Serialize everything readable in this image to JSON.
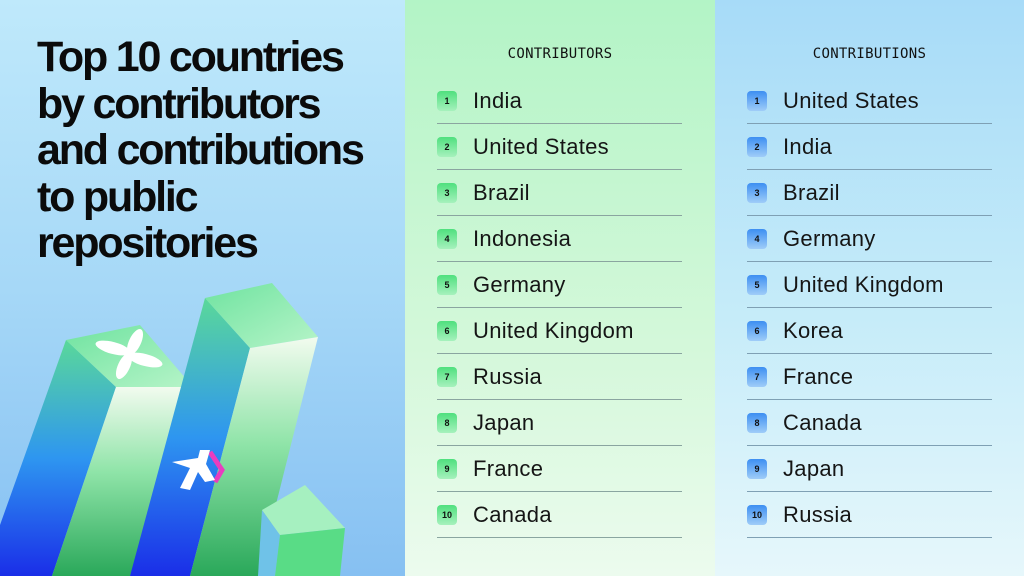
{
  "title_lines": [
    "Top 10 countries",
    "by contributors",
    "and contributions",
    "to public",
    "repositories"
  ],
  "columns": [
    {
      "header": "CONTRIBUTORS",
      "badge_color": "#4fe07e",
      "rows": [
        {
          "rank": "1",
          "country": "India"
        },
        {
          "rank": "2",
          "country": "United States"
        },
        {
          "rank": "3",
          "country": "Brazil"
        },
        {
          "rank": "4",
          "country": "Indonesia"
        },
        {
          "rank": "5",
          "country": "Germany"
        },
        {
          "rank": "6",
          "country": "United Kingdom"
        },
        {
          "rank": "7",
          "country": "Russia"
        },
        {
          "rank": "8",
          "country": "Japan"
        },
        {
          "rank": "9",
          "country": "France"
        },
        {
          "rank": "10",
          "country": "Canada"
        }
      ]
    },
    {
      "header": "CONTRIBUTIONS",
      "badge_color": "#3d8ff2",
      "rows": [
        {
          "rank": "1",
          "country": "United States"
        },
        {
          "rank": "2",
          "country": "India"
        },
        {
          "rank": "3",
          "country": "Brazil"
        },
        {
          "rank": "4",
          "country": "Germany"
        },
        {
          "rank": "5",
          "country": "United Kingdom"
        },
        {
          "rank": "6",
          "country": "Korea"
        },
        {
          "rank": "7",
          "country": "France"
        },
        {
          "rank": "8",
          "country": "Canada"
        },
        {
          "rank": "9",
          "country": "Japan"
        },
        {
          "rank": "10",
          "country": "Russia"
        }
      ]
    }
  ]
}
